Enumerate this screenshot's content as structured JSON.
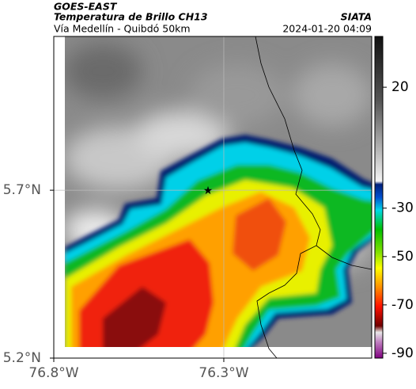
{
  "header": {
    "satellite": "GOES-EAST",
    "product": "Temperatura de Brillo CH13",
    "source": "SIATA",
    "route": "Vía Medellín - Quibdó 50km",
    "datetime": "2024-01-20 04:09"
  },
  "map": {
    "xlim": [
      -76.8,
      -75.865
    ],
    "ylim": [
      5.2,
      6.158
    ],
    "xticks": [
      {
        "value": -76.8,
        "label": "76.8°W"
      },
      {
        "value": -76.3,
        "label": "76.3°W"
      }
    ],
    "yticks": [
      {
        "value": 5.2,
        "label": "5.2°N"
      },
      {
        "value": 5.7,
        "label": "5.7°N"
      }
    ],
    "grid": true
  },
  "colorbar": {
    "lim": [
      41,
      -92
    ],
    "ticks": [
      20,
      -30,
      -50,
      -70,
      -90
    ]
  }
}
